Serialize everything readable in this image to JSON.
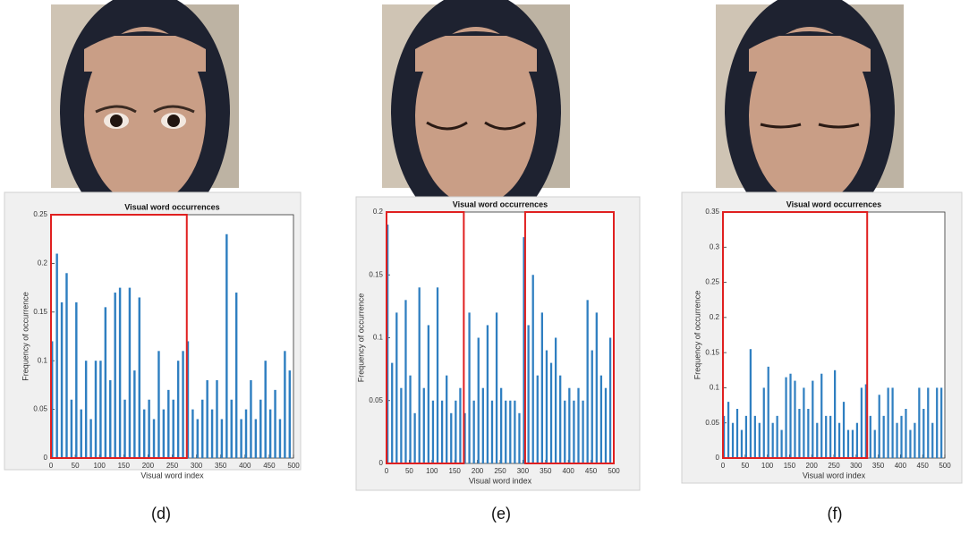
{
  "chart_data": [
    {
      "type": "bar",
      "caption": "(d)",
      "title": "Visual word occurrences",
      "xlabel": "Visual word index",
      "ylabel": "Frequency of occurrence",
      "color": "#2f7fc1",
      "highlight_color": "#e02020",
      "highlights": [
        [
          0,
          280
        ]
      ],
      "x": [
        0,
        10,
        20,
        30,
        40,
        50,
        60,
        70,
        80,
        90,
        100,
        110,
        120,
        130,
        140,
        150,
        160,
        170,
        180,
        190,
        200,
        210,
        220,
        230,
        240,
        250,
        260,
        270,
        280,
        290,
        300,
        310,
        320,
        330,
        340,
        350,
        360,
        370,
        380,
        390,
        400,
        410,
        420,
        430,
        440,
        450,
        460,
        470,
        480,
        490
      ],
      "values": [
        0.12,
        0.21,
        0.16,
        0.19,
        0.06,
        0.16,
        0.05,
        0.1,
        0.04,
        0.1,
        0.1,
        0.155,
        0.08,
        0.17,
        0.175,
        0.06,
        0.175,
        0.09,
        0.165,
        0.05,
        0.06,
        0.04,
        0.11,
        0.05,
        0.07,
        0.06,
        0.1,
        0.11,
        0.12,
        0.05,
        0.04,
        0.06,
        0.08,
        0.05,
        0.08,
        0.04,
        0.23,
        0.06,
        0.17,
        0.04,
        0.05,
        0.08,
        0.04,
        0.06,
        0.1,
        0.05,
        0.07,
        0.04,
        0.11,
        0.09
      ],
      "xlim": [
        0,
        500
      ],
      "xticks": [
        0,
        50,
        100,
        150,
        200,
        250,
        300,
        350,
        400,
        450,
        500
      ],
      "ylim": [
        0,
        0.25
      ],
      "yticks": [
        0,
        0.05,
        0.1,
        0.15,
        0.2,
        0.25
      ]
    },
    {
      "type": "bar",
      "caption": "(e)",
      "title": "Visual word occurrences",
      "xlabel": "Visual word index",
      "ylabel": "Frequency of occurrence",
      "color": "#2f7fc1",
      "highlight_color": "#e02020",
      "highlights": [
        [
          0,
          170
        ],
        [
          305,
          500
        ]
      ],
      "x": [
        0,
        10,
        20,
        30,
        40,
        50,
        60,
        70,
        80,
        90,
        100,
        110,
        120,
        130,
        140,
        150,
        160,
        170,
        180,
        190,
        200,
        210,
        220,
        230,
        240,
        250,
        260,
        270,
        280,
        290,
        300,
        310,
        320,
        330,
        340,
        350,
        360,
        370,
        380,
        390,
        400,
        410,
        420,
        430,
        440,
        450,
        460,
        470,
        480,
        490
      ],
      "values": [
        0.19,
        0.08,
        0.12,
        0.06,
        0.13,
        0.07,
        0.04,
        0.14,
        0.06,
        0.11,
        0.05,
        0.14,
        0.05,
        0.07,
        0.04,
        0.05,
        0.06,
        0.04,
        0.12,
        0.05,
        0.1,
        0.06,
        0.11,
        0.05,
        0.12,
        0.06,
        0.05,
        0.05,
        0.05,
        0.04,
        0.18,
        0.11,
        0.15,
        0.07,
        0.12,
        0.09,
        0.08,
        0.1,
        0.07,
        0.05,
        0.06,
        0.05,
        0.06,
        0.05,
        0.13,
        0.09,
        0.12,
        0.07,
        0.06,
        0.1
      ],
      "xlim": [
        0,
        500
      ],
      "xticks": [
        0,
        50,
        100,
        150,
        200,
        250,
        300,
        350,
        400,
        450,
        500
      ],
      "ylim": [
        0,
        0.2
      ],
      "yticks": [
        0,
        0.05,
        0.1,
        0.15,
        0.2
      ]
    },
    {
      "type": "bar",
      "caption": "(f)",
      "title": "Visual word occurrences",
      "xlabel": "Visual word index",
      "ylabel": "Frequency of occurrence",
      "color": "#2f7fc1",
      "highlight_color": "#e02020",
      "highlights": [
        [
          0,
          325
        ]
      ],
      "x": [
        0,
        10,
        20,
        30,
        40,
        50,
        60,
        70,
        80,
        90,
        100,
        110,
        120,
        130,
        140,
        150,
        160,
        170,
        180,
        190,
        200,
        210,
        220,
        230,
        240,
        250,
        260,
        270,
        280,
        290,
        300,
        310,
        320,
        330,
        340,
        350,
        360,
        370,
        380,
        390,
        400,
        410,
        420,
        430,
        440,
        450,
        460,
        470,
        480,
        490
      ],
      "values": [
        0.06,
        0.08,
        0.05,
        0.07,
        0.04,
        0.06,
        0.155,
        0.06,
        0.05,
        0.1,
        0.13,
        0.05,
        0.06,
        0.04,
        0.115,
        0.12,
        0.11,
        0.07,
        0.1,
        0.07,
        0.11,
        0.05,
        0.12,
        0.06,
        0.06,
        0.125,
        0.05,
        0.08,
        0.04,
        0.04,
        0.05,
        0.1,
        0.105,
        0.06,
        0.04,
        0.09,
        0.06,
        0.1,
        0.1,
        0.05,
        0.06,
        0.07,
        0.04,
        0.05,
        0.1,
        0.07,
        0.1,
        0.05,
        0.1,
        0.1
      ],
      "xlim": [
        0,
        500
      ],
      "xticks": [
        0,
        50,
        100,
        150,
        200,
        250,
        300,
        350,
        400,
        450,
        500
      ],
      "ylim": [
        0,
        0.35
      ],
      "yticks": [
        0,
        0.05,
        0.1,
        0.15,
        0.2,
        0.25,
        0.3,
        0.35
      ]
    }
  ]
}
